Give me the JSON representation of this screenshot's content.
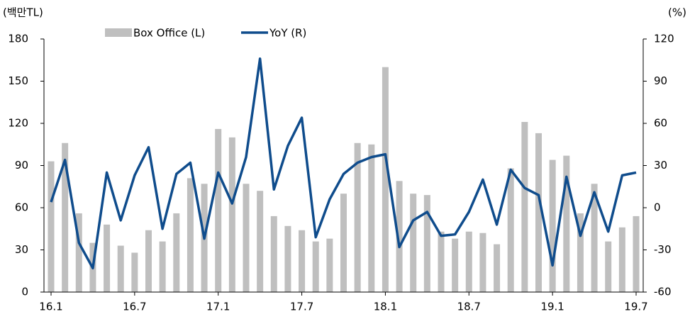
{
  "chart_data": {
    "type": "bar_line",
    "y_label": "(백만TL)",
    "y2_label": "(%)",
    "categories": [
      "16.1",
      null,
      null,
      null,
      null,
      null,
      "16.7",
      null,
      null,
      null,
      null,
      null,
      "17.1",
      null,
      null,
      null,
      null,
      null,
      "17.7",
      null,
      null,
      null,
      null,
      null,
      "18.1",
      null,
      null,
      null,
      null,
      null,
      "18.7",
      null,
      null,
      null,
      null,
      null,
      "19.1",
      null,
      null,
      null,
      null,
      null,
      "19.7"
    ],
    "series": [
      {
        "name": "Box Office (L)",
        "type": "bar",
        "color": "#bfbfbf",
        "axis": "y",
        "values": [
          93,
          106,
          56,
          35,
          48,
          33,
          28,
          44,
          36,
          56,
          81,
          77,
          116,
          110,
          77,
          72,
          54,
          47,
          44,
          36,
          38,
          70,
          106,
          105,
          160,
          79,
          70,
          69,
          43,
          38,
          43,
          42,
          34,
          88,
          121,
          113,
          94,
          97,
          56,
          77,
          36,
          46,
          54
        ]
      },
      {
        "name": "YoY (R)",
        "type": "line",
        "color": "#0f4c8c",
        "axis": "y2",
        "values": [
          4,
          34,
          -25,
          -43,
          25,
          -9,
          23,
          43,
          -15,
          24,
          32,
          -22,
          25,
          3,
          36,
          106,
          13,
          44,
          64,
          -21,
          6,
          24,
          32,
          36,
          38,
          -28,
          -9,
          -3,
          -20,
          -19,
          -3,
          20,
          -12,
          27,
          14,
          9,
          -41,
          22,
          -20,
          11,
          -17,
          23,
          25
        ]
      }
    ],
    "ylim": [
      0,
      180
    ],
    "yticks": [
      0,
      30,
      60,
      90,
      120,
      150,
      180
    ],
    "y2lim": [
      -60,
      120
    ],
    "y2ticks": [
      -60,
      -30,
      0,
      30,
      60,
      90,
      120
    ],
    "legend": "top"
  }
}
